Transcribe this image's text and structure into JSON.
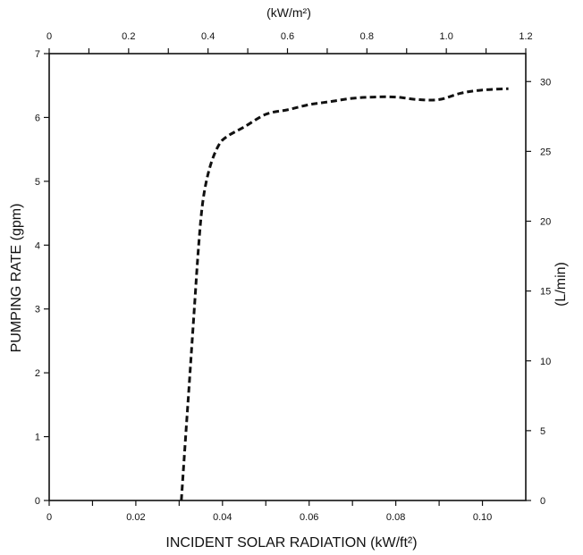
{
  "chart_data": {
    "type": "line",
    "xlabel": "INCIDENT SOLAR RADIATION (kW/ft²)",
    "ylabel": "PUMPING RATE (gpm)",
    "x2label": "(kW/m²)",
    "y2label": "(L/min)",
    "xlim": [
      0,
      0.11
    ],
    "ylim": [
      0,
      7
    ],
    "x2lim": [
      0,
      1.2
    ],
    "y2lim": [
      0,
      32
    ],
    "x_ticks": [
      0,
      0.01,
      0.02,
      0.03,
      0.04,
      0.05,
      0.06,
      0.07,
      0.08,
      0.09,
      0.1
    ],
    "x_tick_labels": [
      "0",
      "",
      "0.02",
      "",
      "0.04",
      "",
      "0.06",
      "",
      "0.08",
      "",
      "0.10"
    ],
    "y_ticks": [
      0,
      1,
      2,
      3,
      4,
      5,
      6,
      7
    ],
    "y_tick_labels": [
      "0",
      "1",
      "2",
      "3",
      "4",
      "5",
      "6",
      "7"
    ],
    "x2_ticks": [
      0,
      0.1,
      0.2,
      0.3,
      0.4,
      0.5,
      0.6,
      0.7,
      0.8,
      0.9,
      1.0,
      1.1,
      1.2
    ],
    "x2_tick_labels": [
      "0",
      "",
      "0.2",
      "",
      "0.4",
      "",
      "0.6",
      "",
      "0.8",
      "",
      "1.0",
      "",
      "1.2"
    ],
    "y2_ticks": [
      0,
      5,
      10,
      15,
      20,
      25,
      30
    ],
    "y2_tick_labels": [
      "0",
      "5",
      "10",
      "15",
      "20",
      "25",
      "30"
    ],
    "grid": false,
    "line_style": "dashed",
    "line_color": "#111111",
    "series": [
      {
        "x": [
          0.0305,
          0.0315,
          0.0325,
          0.0335,
          0.0345,
          0.0355,
          0.037,
          0.039,
          0.041,
          0.045,
          0.05,
          0.055,
          0.06,
          0.065,
          0.07,
          0.075,
          0.08,
          0.085,
          0.09,
          0.095,
          0.1,
          0.106
        ],
        "y": [
          0.0,
          1.0,
          2.0,
          3.0,
          4.0,
          4.7,
          5.2,
          5.55,
          5.7,
          5.85,
          6.05,
          6.12,
          6.2,
          6.25,
          6.3,
          6.32,
          6.32,
          6.28,
          6.28,
          6.38,
          6.43,
          6.45
        ]
      }
    ]
  }
}
